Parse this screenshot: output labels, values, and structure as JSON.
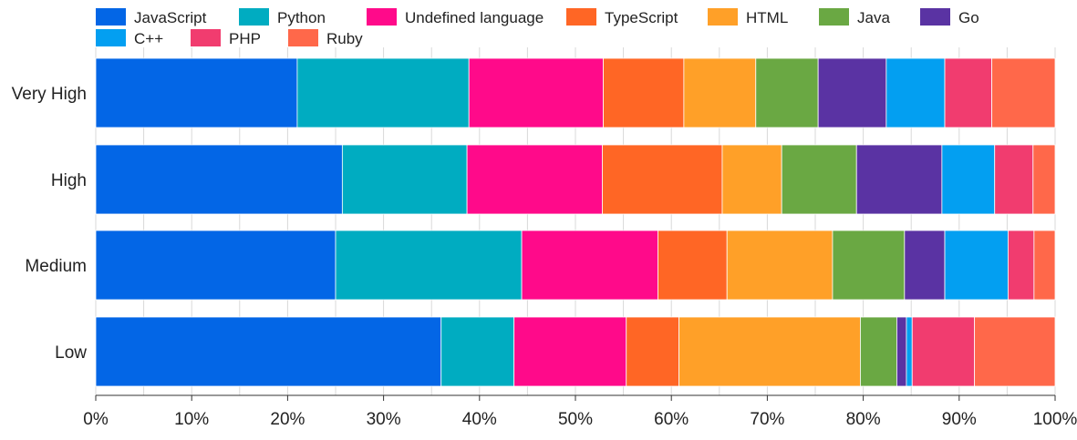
{
  "chart_data": {
    "type": "bar",
    "orientation": "horizontal",
    "stacked": true,
    "normalized": true,
    "title": "",
    "xlabel": "",
    "ylabel": "",
    "xlim": [
      0,
      100
    ],
    "x_ticks": [
      "0%",
      "10%",
      "20%",
      "30%",
      "40%",
      "50%",
      "60%",
      "70%",
      "80%",
      "90%",
      "100%"
    ],
    "grid": true,
    "legend_position": "top-left",
    "categories": [
      "Very High",
      "High",
      "Medium",
      "Low"
    ],
    "series": [
      {
        "name": "JavaScript",
        "color": "#0366e6",
        "values": [
          21.0,
          25.7,
          25.0,
          36.0
        ]
      },
      {
        "name": "Python",
        "color": "#00acc1",
        "values": [
          17.9,
          13.0,
          19.4,
          7.6
        ]
      },
      {
        "name": "Undefined language",
        "color": "#ff0a8a",
        "values": [
          14.0,
          14.1,
          14.2,
          11.7
        ]
      },
      {
        "name": "TypeScript",
        "color": "#ff6625",
        "values": [
          8.4,
          12.5,
          7.2,
          5.5
        ]
      },
      {
        "name": "HTML",
        "color": "#ffa028",
        "values": [
          7.5,
          6.2,
          11.0,
          18.9
        ]
      },
      {
        "name": "Java",
        "color": "#6aa843",
        "values": [
          6.5,
          7.8,
          7.5,
          3.8
        ]
      },
      {
        "name": "Go",
        "color": "#5a33a3",
        "values": [
          7.1,
          8.9,
          4.2,
          1.0
        ]
      },
      {
        "name": "C++",
        "color": "#039ff1",
        "values": [
          6.1,
          5.5,
          6.6,
          0.6
        ]
      },
      {
        "name": "PHP",
        "color": "#f13c6f",
        "values": [
          4.9,
          4.0,
          2.7,
          6.5
        ]
      },
      {
        "name": "Ruby",
        "color": "#ff684a",
        "values": [
          6.6,
          2.3,
          2.2,
          8.4
        ]
      }
    ]
  }
}
